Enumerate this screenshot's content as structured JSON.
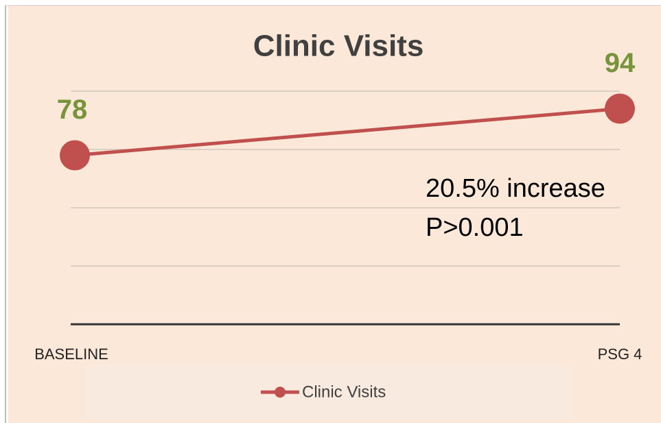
{
  "chart_data": {
    "type": "line",
    "title": "Clinic Visits",
    "categories": [
      "BASELINE",
      "PSG 4"
    ],
    "series": [
      {
        "name": "Clinic Visits",
        "color": "#c0504d",
        "values": [
          78,
          94
        ]
      }
    ],
    "ylim": [
      20,
      100
    ],
    "yticks": [
      20,
      40,
      60,
      80,
      100
    ],
    "grid": true,
    "annotations": [
      "20.5% increase",
      "P>0.001"
    ],
    "label_color": "#77933c",
    "legend": "bottom"
  }
}
